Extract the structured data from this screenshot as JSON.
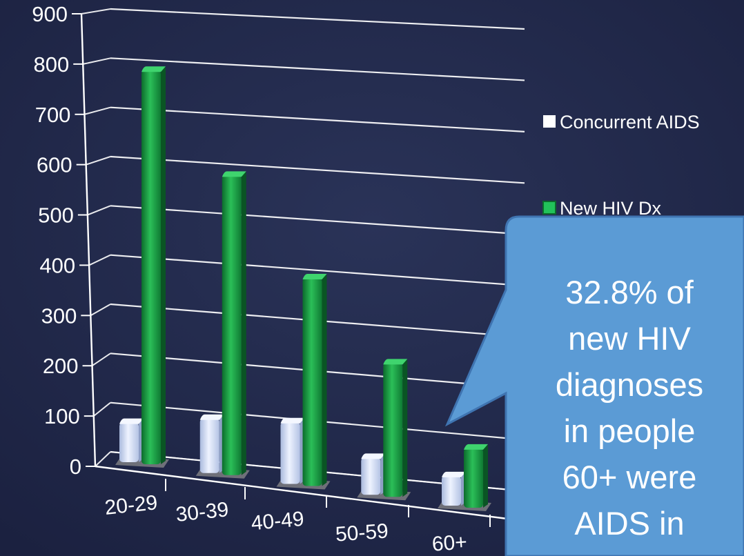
{
  "chart_data": {
    "type": "bar",
    "title": "",
    "xlabel": "",
    "ylabel": "",
    "categories": [
      "20-29",
      "30-39",
      "40-49",
      "50-59",
      "60+"
    ],
    "series": [
      {
        "name": "Concurrent AIDS",
        "color": "#d4e0f8",
        "values": [
          80,
          110,
          125,
          75,
          60
        ]
      },
      {
        "name": "New HIV Dx",
        "color": "#1fa047",
        "values": [
          795,
          605,
          420,
          270,
          120
        ]
      }
    ],
    "ylim": [
      0,
      900
    ],
    "yticks": [
      "0",
      "100",
      "200",
      "300",
      "400",
      "500",
      "600",
      "700",
      "800",
      "900"
    ],
    "grid": true,
    "legend_position": "right",
    "three_d": true
  },
  "callout": {
    "lines": [
      "32.8% of",
      "new HIV",
      "diagnoses",
      "in people",
      "60+ were",
      "AIDS in"
    ],
    "color": "#5b9bd5"
  }
}
